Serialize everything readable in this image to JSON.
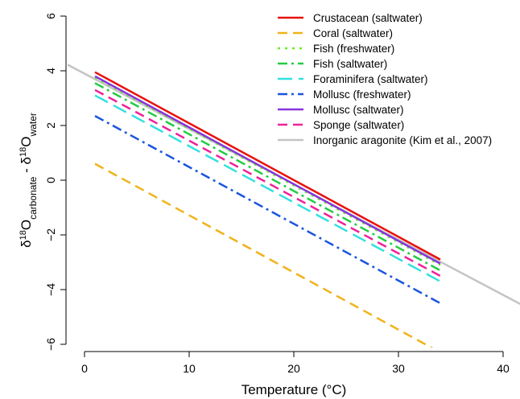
{
  "chart_data": {
    "type": "line",
    "xlabel": "Temperature (°C)",
    "ylabel_parts": {
      "delta": "δ",
      "sup1": "18",
      "o1": "O",
      "sub1": "carbonate",
      "minus": " - δ",
      "sup2": "18",
      "o2": "O",
      "sub2": "water"
    },
    "xlim": [
      -2,
      42
    ],
    "ylim": [
      -6.5,
      6.5
    ],
    "x_ticks": [
      0,
      10,
      20,
      30,
      40
    ],
    "y_ticks": [
      -6,
      -4,
      -2,
      0,
      2,
      4,
      6
    ],
    "grid": false,
    "legend_position": "top-right",
    "series": [
      {
        "name": "Crustacean (saltwater)",
        "color": "#e8120c",
        "dash": "solid",
        "x": [
          1,
          34
        ],
        "y": [
          3.95,
          -2.9
        ]
      },
      {
        "name": "Coral (saltwater)",
        "color": "#f0b31a",
        "dash": "dash",
        "x": [
          1,
          34
        ],
        "y": [
          0.6,
          -6.3
        ]
      },
      {
        "name": "Fish (freshwater)",
        "color": "#66ee22",
        "dash": "dot",
        "x": [
          1,
          34
        ],
        "y": [
          3.75,
          -3.1
        ]
      },
      {
        "name": "Fish (saltwater)",
        "color": "#22cc44",
        "dash": "dashdot",
        "x": [
          1,
          34
        ],
        "y": [
          3.55,
          -3.3
        ]
      },
      {
        "name": "Foraminifera (saltwater)",
        "color": "#33e0e0",
        "dash": "longdash",
        "x": [
          1,
          34
        ],
        "y": [
          3.1,
          -3.7
        ]
      },
      {
        "name": "Mollusc (freshwater)",
        "color": "#1a55dd",
        "dash": "dashdot",
        "x": [
          1,
          34
        ],
        "y": [
          2.35,
          -4.5
        ]
      },
      {
        "name": "Mollusc (saltwater)",
        "color": "#8833dd",
        "dash": "solid",
        "x": [
          1,
          34
        ],
        "y": [
          3.8,
          -3.05
        ]
      },
      {
        "name": "Sponge (saltwater)",
        "color": "#ee2299",
        "dash": "dash",
        "x": [
          1,
          34
        ],
        "y": [
          3.3,
          -3.5
        ]
      },
      {
        "name": "Inorganic aragonite (Kim et al., 2007)",
        "color": "#c4c4c4",
        "dash": "solid",
        "x": [
          -2,
          42
        ],
        "y": [
          4.3,
          -4.6
        ]
      }
    ]
  }
}
